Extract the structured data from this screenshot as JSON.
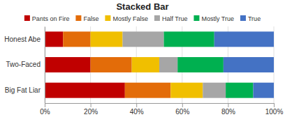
{
  "chart_data": {
    "type": "bar",
    "title": "Stacked Bar",
    "orientation": "horizontal",
    "stacked": true,
    "grid": true,
    "legend": "top",
    "categories": [
      "Honest Abe",
      "Two-Faced",
      "Big Fat Liar"
    ],
    "series": [
      {
        "name": "Pants on Fire",
        "color": "#c00000",
        "values": [
          8,
          20,
          35
        ]
      },
      {
        "name": "False",
        "color": "#e36c09",
        "values": [
          12,
          18,
          20
        ]
      },
      {
        "name": "Mostly False",
        "color": "#f0bf00",
        "values": [
          14,
          12,
          14
        ]
      },
      {
        "name": "Half True",
        "color": "#a6a6a6",
        "values": [
          18,
          8,
          10
        ]
      },
      {
        "name": "Mostly True",
        "color": "#00b050",
        "values": [
          22,
          20,
          12
        ]
      },
      {
        "name": "True",
        "color": "#4472c4",
        "values": [
          26,
          22,
          9
        ]
      }
    ],
    "xlim": [
      0,
      100
    ],
    "xticks": [
      {
        "value": 0,
        "label": "0%"
      },
      {
        "value": 20,
        "label": "20%"
      },
      {
        "value": 40,
        "label": "40%"
      },
      {
        "value": 60,
        "label": "60%"
      },
      {
        "value": 80,
        "label": "80%"
      },
      {
        "value": 100,
        "label": "100%"
      }
    ]
  }
}
